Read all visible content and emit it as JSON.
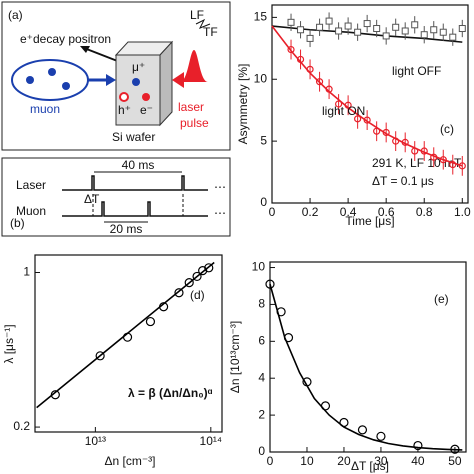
{
  "chart_data": [
    {
      "type": "scatter",
      "label": "(c)",
      "xlabel": "Time [μs]",
      "ylabel": "Asymmetry [%]",
      "xlim": [
        0,
        1.03
      ],
      "ylim": [
        0,
        16
      ],
      "xticks": [
        0,
        0.2,
        0.4,
        0.6,
        0.8,
        {
          "value": 1,
          "label": "1.0"
        }
      ],
      "yticks": [
        0,
        5,
        10,
        15
      ],
      "annotations": [
        "291 K, LF 10 mT",
        "ΔT = 0.1 μs"
      ],
      "series": [
        {
          "name": "light OFF",
          "color": "#555555",
          "marker": "square",
          "x": [
            0.1,
            0.15,
            0.2,
            0.25,
            0.3,
            0.35,
            0.4,
            0.45,
            0.5,
            0.55,
            0.6,
            0.65,
            0.7,
            0.75,
            0.8,
            0.85,
            0.9,
            0.95,
            1.0
          ],
          "values": [
            14.6,
            14.0,
            13.3,
            14.2,
            14.7,
            13.9,
            14.3,
            13.8,
            14.5,
            14.1,
            13.5,
            14.2,
            13.9,
            14.4,
            13.6,
            14.0,
            13.8,
            13.4,
            14.1
          ],
          "errors": [
            0.7,
            0.7,
            0.7,
            0.7,
            0.7,
            0.7,
            0.7,
            0.7,
            0.7,
            0.7,
            0.7,
            0.7,
            0.7,
            0.7,
            0.7,
            0.7,
            0.7,
            0.7,
            0.7
          ]
        },
        {
          "name": "light ON",
          "color": "#e8202a",
          "marker": "circle",
          "x": [
            0.1,
            0.15,
            0.2,
            0.25,
            0.3,
            0.35,
            0.4,
            0.45,
            0.5,
            0.55,
            0.6,
            0.65,
            0.7,
            0.75,
            0.8,
            0.85,
            0.9,
            0.95,
            1.0
          ],
          "values": [
            12.4,
            11.6,
            10.8,
            9.8,
            9.2,
            8.0,
            7.9,
            6.8,
            6.7,
            5.8,
            5.7,
            5.0,
            4.9,
            4.2,
            4.2,
            3.7,
            3.5,
            3.1,
            3.0
          ],
          "errors": [
            0.8,
            0.8,
            0.8,
            0.8,
            0.8,
            0.8,
            0.8,
            0.8,
            0.8,
            0.8,
            0.8,
            0.8,
            0.8,
            0.8,
            0.8,
            0.8,
            0.8,
            0.8,
            0.8
          ]
        }
      ],
      "fits": [
        {
          "color": "#111111",
          "x": [
            0,
            0.2,
            0.4,
            0.6,
            0.8,
            1.0
          ],
          "values": [
            14.3,
            14.0,
            13.8,
            13.5,
            13.3,
            13.0
          ]
        },
        {
          "color": "#e8202a",
          "x": [
            0,
            0.1,
            0.2,
            0.3,
            0.4,
            0.5,
            0.6,
            0.7,
            0.8,
            0.9,
            1.0
          ],
          "values": [
            14.3,
            12.3,
            10.5,
            9.0,
            7.7,
            6.6,
            5.6,
            4.8,
            4.1,
            3.5,
            3.0
          ]
        }
      ]
    },
    {
      "type": "scatter",
      "label": "(d)",
      "xlabel": "Δn [cm⁻³]",
      "ylabel": "λ [μs⁻¹]",
      "xscale": "log",
      "yscale": "log",
      "xlim": [
        3000000000000.0,
        125000000000000.0
      ],
      "ylim": [
        0.19,
        1.2
      ],
      "xticks": [
        {
          "value": 10000000000000.0,
          "label": "10¹³"
        },
        {
          "value": 100000000000000.0,
          "label": "10¹⁴"
        }
      ],
      "yticks": [
        0.2,
        1
      ],
      "annotations": [
        "λ = β (Δn/Δn₀)ᵅ"
      ],
      "series": [
        {
          "color": "#000000",
          "marker": "circle",
          "x": [
            4500000000000.0,
            11000000000000.0,
            19000000000000.0,
            30000000000000.0,
            39000000000000.0,
            53000000000000.0,
            65000000000000.0,
            76000000000000.0,
            85000000000000.0,
            96000000000000.0
          ],
          "values": [
            0.28,
            0.42,
            0.51,
            0.6,
            0.7,
            0.81,
            0.9,
            0.96,
            1.02,
            1.05
          ]
        }
      ],
      "fits": [
        {
          "color": "#000000",
          "x": [
            3100000000000.0,
            107000000000000.0
          ],
          "values": [
            0.245,
            1.11
          ]
        }
      ]
    },
    {
      "type": "scatter",
      "label": "(e)",
      "xlabel": "ΔT [μs]",
      "ylabel": "Δn [10¹³cm⁻³]",
      "xlim": [
        0,
        53
      ],
      "ylim": [
        0,
        10.3
      ],
      "xticks": [
        0,
        10,
        20,
        30,
        40,
        50
      ],
      "yticks": [
        0,
        2,
        4,
        6,
        8,
        10
      ],
      "series": [
        {
          "color": "#000000",
          "marker": "circle",
          "x": [
            0,
            3,
            5,
            10,
            15,
            20,
            25,
            30,
            40,
            50
          ],
          "values": [
            9.1,
            7.6,
            6.2,
            3.8,
            2.5,
            1.6,
            1.2,
            0.85,
            0.35,
            0.15
          ]
        }
      ],
      "fits": [
        {
          "color": "#000000",
          "x": [
            0,
            4,
            8,
            12,
            16,
            20,
            24,
            28,
            32,
            36,
            40,
            44,
            48,
            52
          ],
          "values": [
            9.1,
            6.2,
            4.3,
            2.9,
            2.0,
            1.35,
            0.95,
            0.66,
            0.46,
            0.33,
            0.24,
            0.18,
            0.14,
            0.11
          ]
        }
      ]
    }
  ],
  "diagram_a": {
    "label": "(a)",
    "positron": "e⁺decay positron",
    "lf": "LF",
    "tf": "TF",
    "mu": "μ⁺",
    "muon": "muon",
    "hole": "h⁺",
    "electron": "e⁻",
    "laser": "laser",
    "pulse": "pulse",
    "wafer": "Si wafer"
  },
  "diagram_b": {
    "label": "(b)",
    "laser": "Laser",
    "period_laser": "40 ms",
    "muon": "Muon",
    "delay": "ΔT",
    "period_muon": "20 ms",
    "dots": "⋯"
  }
}
